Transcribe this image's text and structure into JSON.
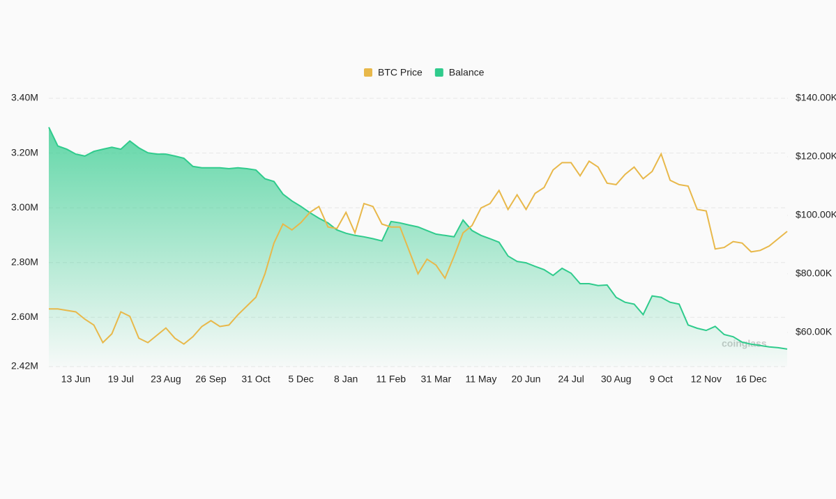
{
  "chart_data": {
    "type": "line",
    "watermark": "coinglass",
    "categories": [
      null,
      null,
      null,
      "13 Jun",
      null,
      null,
      null,
      null,
      "19 Jul",
      null,
      null,
      null,
      null,
      "23 Aug",
      null,
      null,
      null,
      null,
      "26 Sep",
      null,
      null,
      null,
      null,
      "31 Oct",
      null,
      null,
      null,
      null,
      "5 Dec",
      null,
      null,
      null,
      null,
      "8 Jan",
      null,
      null,
      null,
      null,
      "11 Feb",
      null,
      null,
      null,
      null,
      "31 Mar",
      null,
      null,
      null,
      null,
      "11 May",
      null,
      null,
      null,
      null,
      "20 Jun",
      null,
      null,
      null,
      null,
      "24 Jul",
      null,
      null,
      null,
      null,
      "30 Aug",
      null,
      null,
      null,
      null,
      "9 Oct",
      null,
      null,
      null,
      null,
      "12 Nov",
      null,
      null,
      null,
      null,
      "16 Dec",
      null,
      null,
      null,
      null
    ],
    "series": [
      {
        "name": "BTC Price",
        "color": "#e8b84a",
        "axis": "y2",
        "values": [
          68000,
          68000,
          67500,
          67000,
          64500,
          62500,
          56500,
          59500,
          67000,
          65500,
          58000,
          56500,
          59000,
          61500,
          58000,
          56000,
          58500,
          62000,
          64000,
          62000,
          62500,
          66000,
          69000,
          72000,
          80000,
          90500,
          97000,
          95000,
          97500,
          101000,
          103000,
          96000,
          95500,
          101000,
          94000,
          104000,
          103000,
          97000,
          96000,
          96000,
          88000,
          80000,
          85000,
          83000,
          78500,
          86000,
          94000,
          96500,
          102500,
          104000,
          108500,
          102000,
          107000,
          102000,
          107500,
          109500,
          115500,
          118000,
          118000,
          113500,
          118500,
          116500,
          111000,
          110500,
          114000,
          116500,
          112500,
          115000,
          121000,
          112000,
          110500,
          110000,
          102000,
          101500,
          88500,
          89000,
          91000,
          90500,
          87500,
          88000,
          89500,
          92000,
          94500
        ]
      },
      {
        "name": "Balance",
        "color": "#2fcb8c",
        "axis": "y",
        "values": [
          3294000,
          3226000,
          3214000,
          3196000,
          3189000,
          3206000,
          3214000,
          3221000,
          3214000,
          3244000,
          3219000,
          3201000,
          3196000,
          3196000,
          3189000,
          3181000,
          3151000,
          3146000,
          3146000,
          3146000,
          3143000,
          3146000,
          3143000,
          3138000,
          3106000,
          3096000,
          3050000,
          3025000,
          3005000,
          2982000,
          2962000,
          2945000,
          2919000,
          2907000,
          2899000,
          2894000,
          2887000,
          2879000,
          2950000,
          2945000,
          2937000,
          2930000,
          2917000,
          2904000,
          2899000,
          2894000,
          2955000,
          2917000,
          2899000,
          2887000,
          2874000,
          2824000,
          2804000,
          2799000,
          2786000,
          2774000,
          2753000,
          2779000,
          2761000,
          2723000,
          2723000,
          2716000,
          2718000,
          2673000,
          2655000,
          2648000,
          2610000,
          2678000,
          2673000,
          2655000,
          2648000,
          2572000,
          2560000,
          2552000,
          2567000,
          2537000,
          2529000,
          2509000,
          2502000,
          2497000,
          2492000,
          2489000,
          2484000
        ]
      }
    ],
    "ylim": [
      2420000,
      3400000
    ],
    "yticks": [
      {
        "value": 2420000,
        "label": "2.42M"
      },
      {
        "value": 2600000,
        "label": "2.60M"
      },
      {
        "value": 2800000,
        "label": "2.80M"
      },
      {
        "value": 3000000,
        "label": "3.00M"
      },
      {
        "value": 3200000,
        "label": "3.20M"
      },
      {
        "value": 3400000,
        "label": "3.40M"
      }
    ],
    "y2lim": [
      48300,
      140000
    ],
    "y2ticks": [
      {
        "value": 60000,
        "label": "$60.00K"
      },
      {
        "value": 80000,
        "label": "$80.00K"
      },
      {
        "value": 100000,
        "label": "$100.00K"
      },
      {
        "value": 120000,
        "label": "$120.00K"
      },
      {
        "value": 140000,
        "label": "$140.00K"
      }
    ],
    "grid": true
  }
}
